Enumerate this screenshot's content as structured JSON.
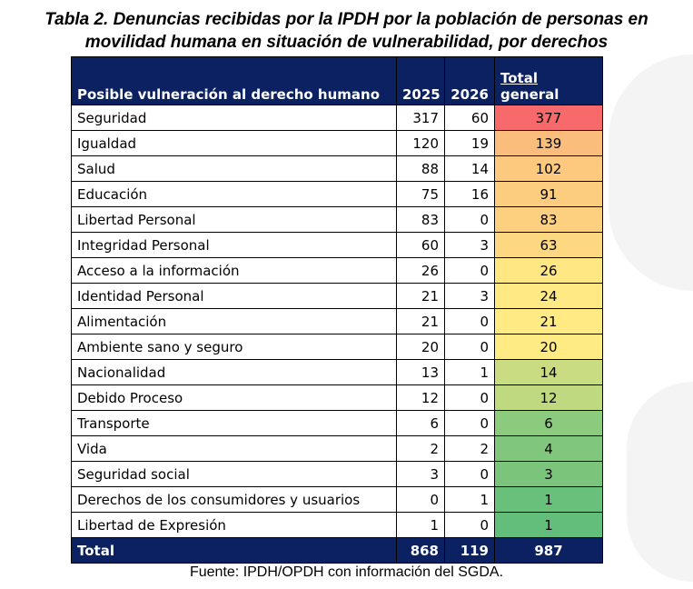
{
  "title_line1": "Tabla 2. Denuncias recibidas por la IPDH por la población de personas en",
  "title_line2": "movilidad humana en situación de vulnerabilidad, por derechos",
  "table": {
    "headers": [
      "Posible vulneración al derecho humano",
      "2025",
      "2026",
      "Total",
      "general"
    ],
    "rows": [
      {
        "label": "Seguridad",
        "y2025": "317",
        "y2026": "60",
        "total": "377",
        "color": "#f8696b"
      },
      {
        "label": "Igualdad",
        "y2025": "120",
        "y2026": "19",
        "total": "139",
        "color": "#fbbd7b"
      },
      {
        "label": "Salud",
        "y2025": "88",
        "y2026": "14",
        "total": "102",
        "color": "#fdc97e"
      },
      {
        "label": "Educación",
        "y2025": "75",
        "y2026": "16",
        "total": "91",
        "color": "#fdcd7f"
      },
      {
        "label": "Libertad Personal",
        "y2025": "83",
        "y2026": "0",
        "total": "83",
        "color": "#fdd07f"
      },
      {
        "label": "Integridad Personal",
        "y2025": "60",
        "y2026": "3",
        "total": "63",
        "color": "#fed781"
      },
      {
        "label": "Acceso a la información",
        "y2025": "26",
        "y2026": "0",
        "total": "26",
        "color": "#ffe883"
      },
      {
        "label": "Identidad Personal",
        "y2025": "21",
        "y2026": "3",
        "total": "24",
        "color": "#ffe984"
      },
      {
        "label": "Alimentación",
        "y2025": "21",
        "y2026": "0",
        "total": "21",
        "color": "#ffea84"
      },
      {
        "label": "Ambiente sano y seguro",
        "y2025": "20",
        "y2026": "0",
        "total": "20",
        "color": "#ffeb84"
      },
      {
        "label": "Nacionalidad",
        "y2025": "13",
        "y2026": "1",
        "total": "14",
        "color": "#c9dc81"
      },
      {
        "label": "Debido Proceso",
        "y2025": "12",
        "y2026": "0",
        "total": "12",
        "color": "#bfd981"
      },
      {
        "label": "Transporte",
        "y2025": "6",
        "y2026": "0",
        "total": "6",
        "color": "#8ccb7e"
      },
      {
        "label": "Vida",
        "y2025": "2",
        "y2026": "2",
        "total": "4",
        "color": "#80c67c"
      },
      {
        "label": "Seguridad social",
        "y2025": "3",
        "y2026": "0",
        "total": "3",
        "color": "#7ac47c"
      },
      {
        "label": "Derechos de los consumidores y usuarios",
        "y2025": "0",
        "y2026": "1",
        "total": "1",
        "color": "#69c07b"
      },
      {
        "label": "Libertad de Expresión",
        "y2025": "1",
        "y2026": "0",
        "total": "1",
        "color": "#63be7b"
      }
    ],
    "total": {
      "label": "Total",
      "y2025": "868",
      "y2026": "119",
      "total": "987"
    }
  },
  "source": "Fuente: IPDH/OPDH con información del SGDA."
}
